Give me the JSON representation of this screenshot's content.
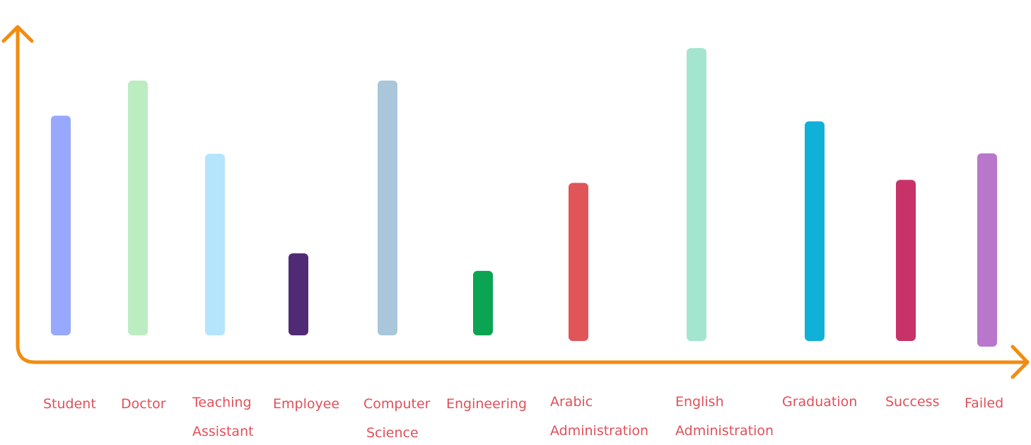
{
  "chart_data": {
    "type": "bar",
    "title": "",
    "xlabel": "",
    "ylabel": "",
    "ylim": [
      0,
      100
    ],
    "grid": false,
    "legend": "none",
    "categories": [
      [
        "Student"
      ],
      [
        "Doctor"
      ],
      [
        "Teaching",
        "Assistant"
      ],
      [
        "Employee"
      ],
      [
        "Computer",
        "Science"
      ],
      [
        "Engineering"
      ],
      [
        "Arabic",
        "Administration"
      ],
      [
        "English",
        "Administration"
      ],
      [
        "Graduation"
      ],
      [
        "Success"
      ],
      [
        "Failed"
      ]
    ],
    "values": [
      75,
      87,
      62,
      28,
      87,
      22,
      54,
      100,
      75,
      55,
      66
    ],
    "colors": [
      "#97a8fd",
      "#bbedc1",
      "#b5e4fd",
      "#512a76",
      "#a9c6da",
      "#0aa453",
      "#e05558",
      "#a4e5cf",
      "#10b0d8",
      "#c73268",
      "#b877ca"
    ],
    "axis_color": "#f28c0f",
    "label_color": "#e0505a"
  }
}
